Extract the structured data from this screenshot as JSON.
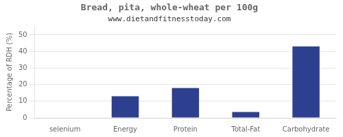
{
  "chart_data": {
    "type": "bar",
    "title": "Bread, pita, whole-wheat per 100g",
    "subtitle": "www.dietandfitnesstoday.com",
    "categories": [
      "selenium",
      "Energy",
      "Protein",
      "Total-Fat",
      "Carbohydrate"
    ],
    "values": [
      0,
      13,
      18,
      3.5,
      43
    ],
    "color": "#2d4090",
    "ylabel": "Percentage of RDH (%)",
    "ylim": [
      0,
      55
    ],
    "yticks": [
      0,
      10,
      20,
      30,
      40,
      50
    ],
    "grid": true
  }
}
